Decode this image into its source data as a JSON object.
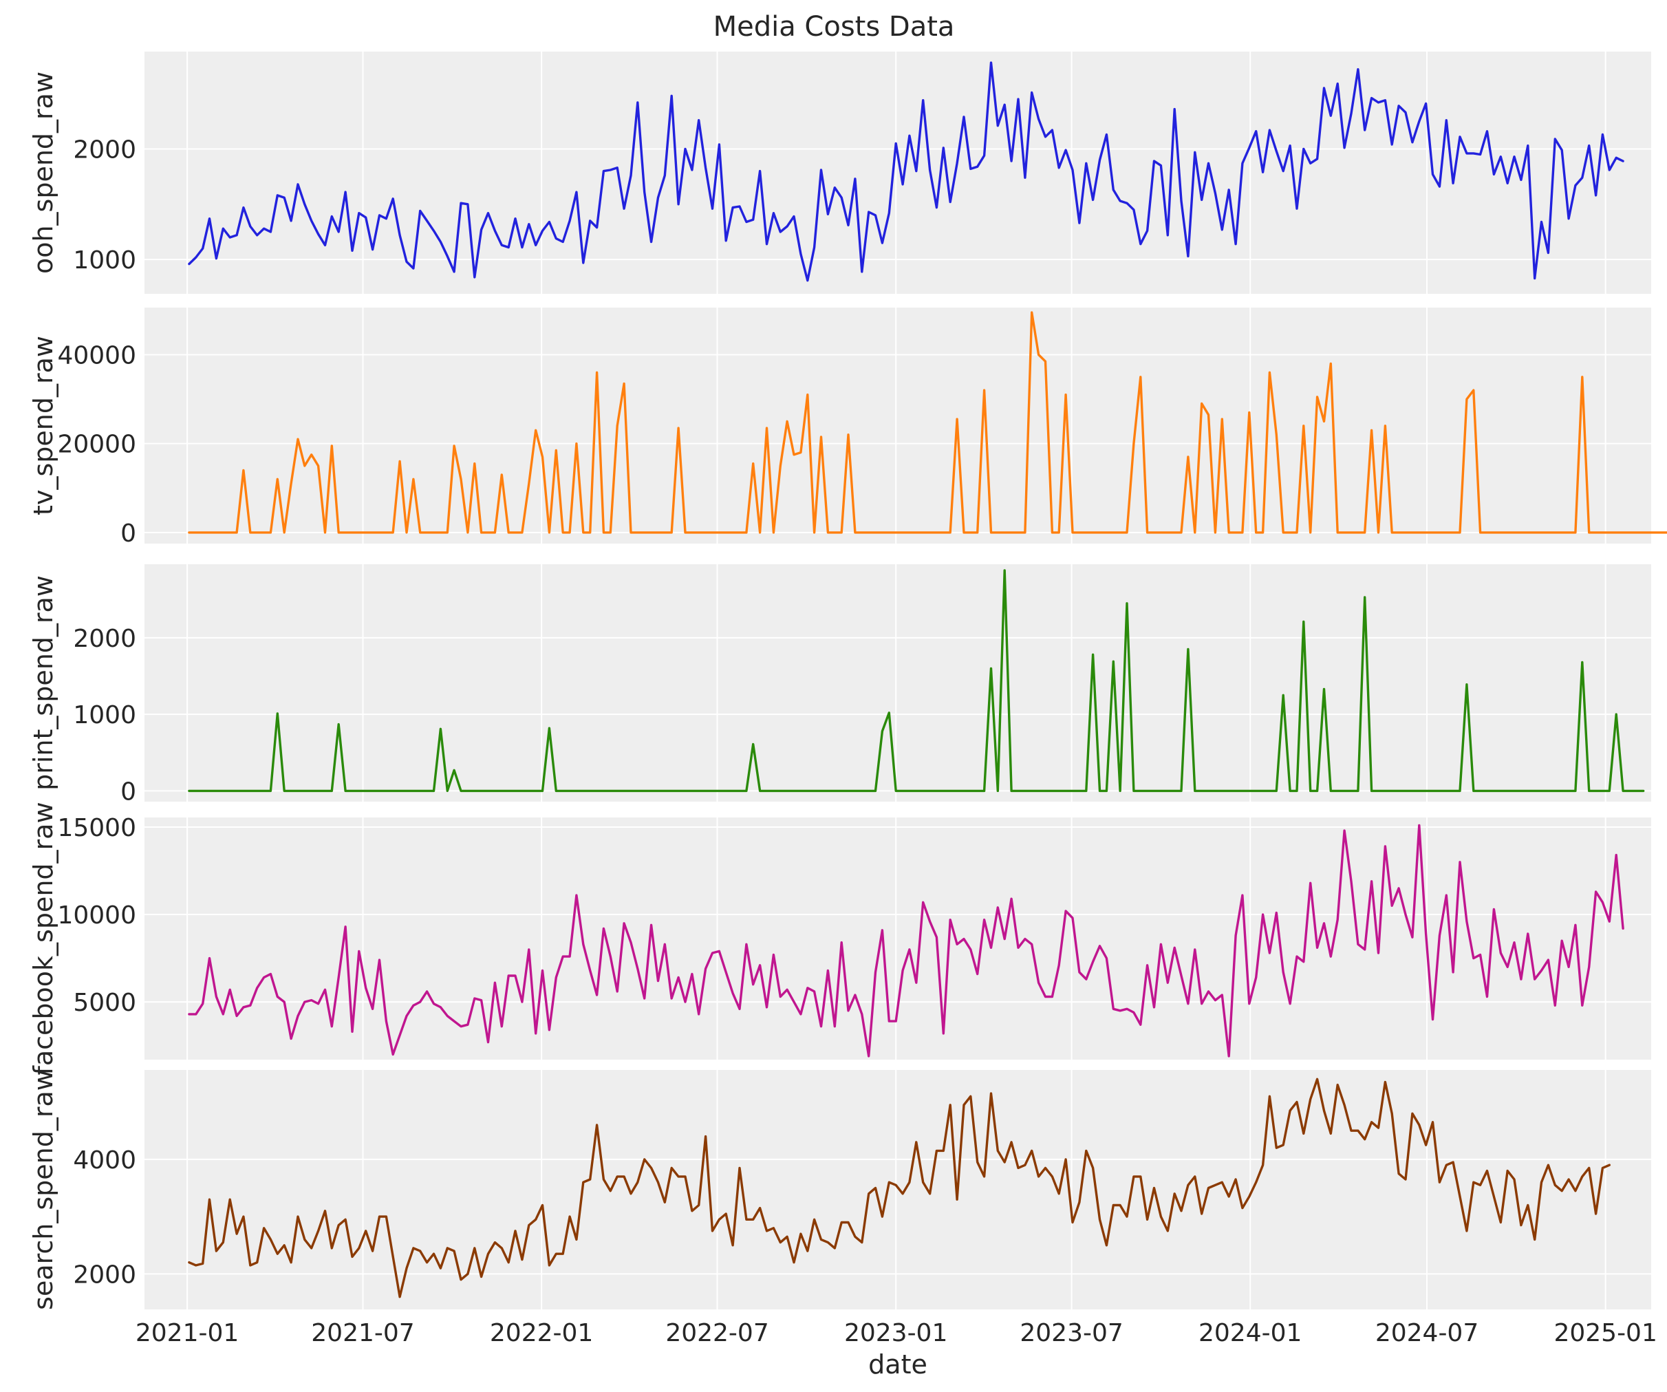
{
  "chart_data": {
    "type": "line",
    "title": "Media Costs Data",
    "xlabel": "date",
    "x_start": "2021-01-03",
    "x_step_days": 7,
    "x_ticks": [
      "2021-01",
      "2021-07",
      "2022-01",
      "2022-07",
      "2023-01",
      "2023-07",
      "2024-01",
      "2024-07",
      "2025-01"
    ],
    "xlim": [
      "2020-11-18",
      "2025-02-17"
    ],
    "grid": true,
    "panels": [
      {
        "ylabel": "ooh_spend_raw",
        "color": "#2222dd",
        "ylim": [
          690,
          2880
        ],
        "yticks": [
          1000,
          2000
        ],
        "values": [
          960,
          1020,
          1100,
          1370,
          1010,
          1280,
          1200,
          1220,
          1470,
          1300,
          1220,
          1280,
          1250,
          1580,
          1560,
          1350,
          1680,
          1500,
          1350,
          1230,
          1130,
          1390,
          1250,
          1610,
          1080,
          1420,
          1380,
          1090,
          1400,
          1370,
          1550,
          1220,
          980,
          920,
          1440,
          1350,
          1260,
          1160,
          1030,
          890,
          1510,
          1500,
          840,
          1270,
          1420,
          1260,
          1130,
          1110,
          1370,
          1110,
          1320,
          1130,
          1260,
          1340,
          1190,
          1160,
          1350,
          1610,
          970,
          1350,
          1290,
          1800,
          1810,
          1830,
          1460,
          1760,
          2420,
          1610,
          1160,
          1560,
          1760,
          2480,
          1500,
          2000,
          1810,
          2260,
          1830,
          1460,
          2040,
          1170,
          1470,
          1480,
          1340,
          1360,
          1800,
          1140,
          1420,
          1250,
          1300,
          1390,
          1050,
          810,
          1110,
          1810,
          1410,
          1650,
          1560,
          1310,
          1730,
          890,
          1430,
          1400,
          1150,
          1420,
          2050,
          1680,
          2120,
          1800,
          2440,
          1810,
          1470,
          2010,
          1520,
          1870,
          2290,
          1820,
          1840,
          1940,
          2780,
          2210,
          2400,
          1890,
          2450,
          1740,
          2510,
          2270,
          2110,
          2170,
          1830,
          1990,
          1810,
          1330,
          1870,
          1540,
          1900,
          2130,
          1630,
          1530,
          1510,
          1450,
          1140,
          1260,
          1890,
          1850,
          1220,
          2360,
          1530,
          1030,
          1970,
          1540,
          1870,
          1600,
          1270,
          1630,
          1140,
          1870,
          2010,
          2160,
          1790,
          2170,
          1980,
          1800,
          2030,
          1460,
          2000,
          1870,
          1910,
          2550,
          2300,
          2590,
          2010,
          2320,
          2720,
          2170,
          2460,
          2420,
          2440,
          2040,
          2390,
          2330,
          2060,
          2250,
          2410,
          1770,
          1660,
          2260,
          1690,
          2110,
          1960,
          1960,
          1950,
          2160,
          1770,
          1930,
          1690,
          1930,
          1720,
          2030,
          830,
          1340,
          1060,
          2090,
          1990,
          1370,
          1670,
          1740,
          2030,
          1580,
          2130,
          1810,
          1920,
          1890
        ]
      },
      {
        "ylabel": "tv_spend_raw",
        "color": "#ff7f0e",
        "ylim": [
          -2500,
          50600
        ],
        "yticks": [
          0,
          20000,
          40000
        ],
        "values": [
          0,
          0,
          0,
          0,
          0,
          0,
          0,
          0,
          14000,
          0,
          0,
          0,
          0,
          12000,
          0,
          11000,
          21000,
          15000,
          17500,
          15000,
          0,
          19500,
          0,
          0,
          0,
          0,
          0,
          0,
          0,
          0,
          0,
          16000,
          0,
          12000,
          0,
          0,
          0,
          0,
          0,
          19500,
          12000,
          0,
          15500,
          0,
          0,
          0,
          13000,
          0,
          0,
          0,
          11000,
          23000,
          17000,
          0,
          18500,
          0,
          0,
          20000,
          0,
          0,
          36000,
          0,
          0,
          24000,
          33500,
          0,
          0,
          0,
          0,
          0,
          0,
          0,
          23500,
          0,
          0,
          0,
          0,
          0,
          0,
          0,
          0,
          0,
          0,
          15500,
          0,
          23500,
          0,
          15000,
          25000,
          17500,
          18000,
          31000,
          0,
          21500,
          0,
          0,
          0,
          22000,
          0,
          0,
          0,
          0,
          0,
          0,
          0,
          0,
          0,
          0,
          0,
          0,
          0,
          0,
          0,
          25500,
          0,
          0,
          0,
          32000,
          0,
          0,
          0,
          0,
          0,
          0,
          49500,
          40000,
          38500,
          0,
          0,
          31000,
          0,
          0,
          0,
          0,
          0,
          0,
          0,
          0,
          0,
          20000,
          35000,
          0,
          0,
          0,
          0,
          0,
          0,
          17000,
          0,
          29000,
          26500,
          0,
          25500,
          0,
          0,
          0,
          27000,
          0,
          0,
          36000,
          22000,
          0,
          0,
          0,
          24000,
          0,
          30500,
          25000,
          38000,
          0,
          0,
          0,
          0,
          0,
          23000,
          0,
          24000,
          0,
          0,
          0,
          0,
          0,
          0,
          0,
          0,
          0,
          0,
          0,
          30000,
          32000,
          0,
          0,
          0,
          0,
          0,
          0,
          0,
          0,
          0,
          0,
          0,
          0,
          0,
          0,
          0,
          35000,
          0,
          0,
          0,
          0,
          0,
          0,
          0,
          0,
          0,
          0,
          0,
          0,
          0,
          0
        ]
      },
      {
        "ylabel": "print_spend_raw",
        "color": "#2a8a0a",
        "ylim": [
          -140,
          2960
        ],
        "yticks": [
          0,
          1000,
          2000
        ],
        "values": [
          0,
          0,
          0,
          0,
          0,
          0,
          0,
          0,
          0,
          0,
          0,
          0,
          0,
          1010,
          0,
          0,
          0,
          0,
          0,
          0,
          0,
          0,
          870,
          0,
          0,
          0,
          0,
          0,
          0,
          0,
          0,
          0,
          0,
          0,
          0,
          0,
          0,
          810,
          0,
          270,
          0,
          0,
          0,
          0,
          0,
          0,
          0,
          0,
          0,
          0,
          0,
          0,
          0,
          820,
          0,
          0,
          0,
          0,
          0,
          0,
          0,
          0,
          0,
          0,
          0,
          0,
          0,
          0,
          0,
          0,
          0,
          0,
          0,
          0,
          0,
          0,
          0,
          0,
          0,
          0,
          0,
          0,
          0,
          610,
          0,
          0,
          0,
          0,
          0,
          0,
          0,
          0,
          0,
          0,
          0,
          0,
          0,
          0,
          0,
          0,
          0,
          0,
          780,
          1020,
          0,
          0,
          0,
          0,
          0,
          0,
          0,
          0,
          0,
          0,
          0,
          0,
          0,
          0,
          1600,
          0,
          2880,
          0,
          0,
          0,
          0,
          0,
          0,
          0,
          0,
          0,
          0,
          0,
          0,
          1780,
          0,
          0,
          1690,
          0,
          2450,
          0,
          0,
          0,
          0,
          0,
          0,
          0,
          0,
          1850,
          0,
          0,
          0,
          0,
          0,
          0,
          0,
          0,
          0,
          0,
          0,
          0,
          0,
          1250,
          0,
          0,
          2210,
          0,
          0,
          1330,
          0,
          0,
          0,
          0,
          0,
          2530,
          0,
          0,
          0,
          0,
          0,
          0,
          0,
          0,
          0,
          0,
          0,
          0,
          0,
          0,
          1390,
          0,
          0,
          0,
          0,
          0,
          0,
          0,
          0,
          0,
          0,
          0,
          0,
          0,
          0,
          0,
          0,
          1680,
          0,
          0,
          0,
          0,
          1000,
          0,
          0,
          0,
          0
        ]
      },
      {
        "ylabel": "facebook_spend_raw",
        "color": "#c0168f",
        "ylim": [
          1700,
          15550
        ],
        "yticks": [
          5000,
          10000,
          15000
        ],
        "values": [
          4300,
          4300,
          4900,
          7500,
          5300,
          4300,
          5700,
          4200,
          4700,
          4800,
          5800,
          6400,
          6600,
          5300,
          5000,
          2900,
          4200,
          5000,
          5100,
          4900,
          5700,
          3600,
          6400,
          9300,
          3300,
          7900,
          5800,
          4600,
          7400,
          3900,
          2000,
          3100,
          4200,
          4800,
          5000,
          5600,
          4900,
          4700,
          4200,
          3900,
          3600,
          3700,
          5200,
          5100,
          2700,
          6100,
          3600,
          6500,
          6500,
          5000,
          8000,
          3200,
          6800,
          3400,
          6400,
          7600,
          7600,
          11100,
          8300,
          6800,
          5400,
          9200,
          7600,
          5600,
          9500,
          8400,
          6900,
          5200,
          9400,
          6200,
          8300,
          5200,
          6400,
          5000,
          6600,
          4300,
          6900,
          7800,
          7900,
          6700,
          5500,
          4600,
          8300,
          6000,
          7100,
          4700,
          7700,
          5300,
          5700,
          5000,
          4300,
          5800,
          5600,
          3600,
          6800,
          3600,
          8400,
          4500,
          5400,
          4300,
          1900,
          6700,
          9100,
          3900,
          3900,
          6800,
          8000,
          6100,
          10700,
          9600,
          8700,
          3200,
          9700,
          8300,
          8600,
          8000,
          6600,
          9700,
          8100,
          10400,
          8600,
          10900,
          8100,
          8600,
          8300,
          6100,
          5300,
          5300,
          7100,
          10200,
          9800,
          6700,
          6300,
          7300,
          8200,
          7500,
          4600,
          4500,
          4600,
          4400,
          3700,
          7100,
          4700,
          8300,
          6100,
          8100,
          6500,
          4900,
          8000,
          4900,
          5600,
          5100,
          5400,
          1900,
          8800,
          11100,
          4900,
          6400,
          10000,
          7800,
          10100,
          6700,
          4900,
          7600,
          7300,
          11800,
          8100,
          9500,
          7600,
          9700,
          14800,
          11900,
          8300,
          8000,
          11900,
          7800,
          13900,
          10500,
          11500,
          10000,
          8700,
          15100,
          8900,
          4000,
          8800,
          11100,
          6700,
          13000,
          9600,
          7500,
          7700,
          5300,
          10300,
          7800,
          7000,
          8400,
          6300,
          8900,
          6300,
          6800,
          7400,
          4800,
          8500,
          7000,
          9400,
          4800,
          7000,
          11300,
          10700,
          9600,
          13400,
          9200
        ]
      },
      {
        "ylabel": "search_spend_raw",
        "color": "#8b3a02",
        "ylim": [
          1380,
          5560
        ],
        "yticks": [
          2000,
          4000
        ],
        "values": [
          2200,
          2150,
          2180,
          3300,
          2400,
          2550,
          3300,
          2700,
          3000,
          2150,
          2200,
          2800,
          2600,
          2350,
          2500,
          2200,
          3000,
          2600,
          2450,
          2750,
          3100,
          2450,
          2850,
          2950,
          2300,
          2450,
          2750,
          2400,
          3000,
          3000,
          2300,
          1600,
          2100,
          2450,
          2400,
          2200,
          2350,
          2100,
          2450,
          2400,
          1900,
          2000,
          2450,
          1950,
          2350,
          2550,
          2450,
          2200,
          2750,
          2250,
          2850,
          2950,
          3200,
          2150,
          2350,
          2350,
          3000,
          2600,
          3600,
          3650,
          4600,
          3650,
          3450,
          3700,
          3700,
          3400,
          3600,
          4000,
          3850,
          3600,
          3250,
          3850,
          3700,
          3700,
          3100,
          3200,
          4400,
          2750,
          2950,
          3050,
          2500,
          3850,
          2950,
          2950,
          3150,
          2750,
          2800,
          2550,
          2650,
          2200,
          2700,
          2400,
          2950,
          2600,
          2550,
          2450,
          2900,
          2900,
          2650,
          2550,
          3400,
          3500,
          3000,
          3600,
          3550,
          3400,
          3600,
          4300,
          3600,
          3400,
          4150,
          4150,
          4950,
          3300,
          4950,
          5100,
          3950,
          3700,
          5150,
          4150,
          3950,
          4300,
          3850,
          3900,
          4150,
          3700,
          3850,
          3700,
          3400,
          4000,
          2900,
          3250,
          4150,
          3850,
          2950,
          2500,
          3200,
          3200,
          3000,
          3700,
          3700,
          2950,
          3500,
          3000,
          2750,
          3400,
          3100,
          3550,
          3700,
          3050,
          3500,
          3550,
          3600,
          3350,
          3650,
          3150,
          3350,
          3600,
          3900,
          5100,
          4200,
          4250,
          4850,
          5000,
          4450,
          5050,
          5400,
          4850,
          4450,
          5300,
          4950,
          4500,
          4500,
          4350,
          4650,
          4550,
          5350,
          4800,
          3750,
          3650,
          4800,
          4600,
          4250,
          4650,
          3600,
          3900,
          3950,
          3350,
          2750,
          3600,
          3550,
          3800,
          3350,
          2900,
          3800,
          3650,
          2850,
          3200,
          2600,
          3600,
          3900,
          3550,
          3450,
          3650,
          3450,
          3700,
          3850,
          3050,
          3850,
          3900
        ]
      }
    ]
  }
}
